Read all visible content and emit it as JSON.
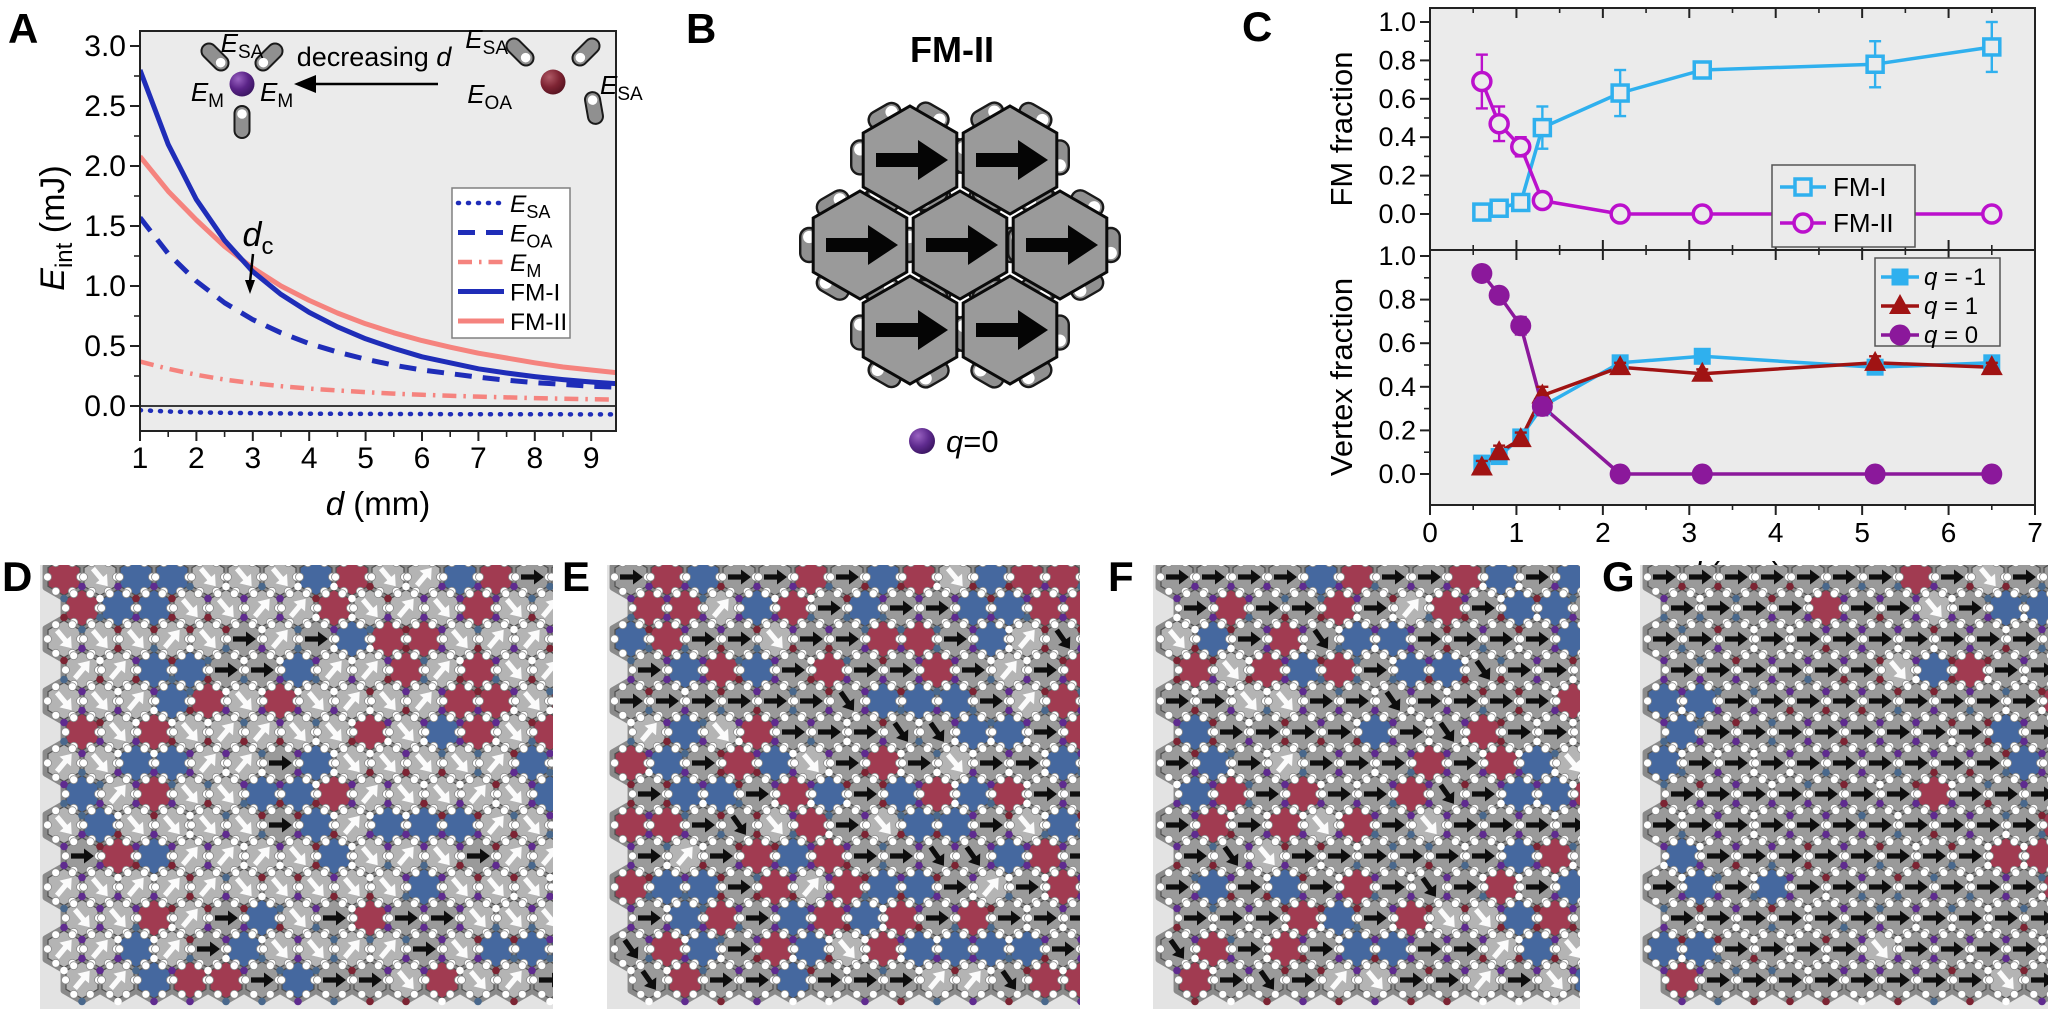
{
  "panels": {
    "a": "A",
    "b": "B",
    "c": "C",
    "d": "D",
    "e": "E",
    "f": "F",
    "g": "G"
  },
  "colors": {
    "blue": "#1f2db8",
    "salmon": "#f5837e",
    "cyan": "#2fb0ee",
    "magenta": "#bb10cc",
    "dark_red": "#a01313",
    "purple": "#8b189b",
    "vertex_purple": "#5f2b8f",
    "sphere_red": "#8e2f3c",
    "hex_red": "#a13b51",
    "hex_blue": "#45689f",
    "hex_gray": "#9a9a9a",
    "hex_light": "#b4b4b4",
    "plot_bg": "#ebebeb",
    "lattice_bg": "#e3e3e3",
    "capsule_gray": "#909090"
  },
  "panel_a": {
    "y_title": {
      "base": "E",
      "sub": "int",
      "rest": " (mJ)",
      "italic": true
    },
    "x_title": {
      "base": "d",
      "rest": " (mm)",
      "italic": true
    },
    "x_ticks": [
      1,
      2,
      3,
      4,
      5,
      6,
      7,
      8,
      9
    ],
    "y_ticks": [
      "0.0",
      "0.5",
      "1.0",
      "1.5",
      "2.0",
      "2.5",
      "3.0"
    ],
    "dc_annotation": {
      "base": "d",
      "sub": "c",
      "italic": true
    },
    "inset": {
      "arrow_label": {
        "pre": "decreasing ",
        "base": "d",
        "italic": true
      },
      "left_labels": [
        {
          "base": "E",
          "sub": "SA",
          "italic": true
        },
        {
          "base": "E",
          "sub": "M",
          "italic": true
        },
        {
          "base": "E",
          "sub": "M",
          "italic": true
        }
      ],
      "right_labels": [
        {
          "base": "E",
          "sub": "SA",
          "italic": true
        },
        {
          "base": "E",
          "sub": "OA",
          "italic": true
        },
        {
          "base": "E",
          "sub": "SA",
          "italic": true
        }
      ]
    },
    "legend": [
      {
        "label": {
          "base": "E",
          "sub": "SA",
          "italic": true
        },
        "style": "dotted",
        "color": "blue"
      },
      {
        "label": {
          "base": "E",
          "sub": "OA",
          "italic": true
        },
        "style": "dashed",
        "color": "blue"
      },
      {
        "label": {
          "base": "E",
          "sub": "M",
          "italic": true
        },
        "style": "dashdot",
        "color": "salmon"
      },
      {
        "label": {
          "base": "FM-I"
        },
        "style": "solid",
        "color": "blue"
      },
      {
        "label": {
          "base": "FM-II"
        },
        "style": "solid",
        "color": "salmon"
      }
    ]
  },
  "panel_b": {
    "title": "FM-II",
    "legend_label": {
      "base": "q",
      "rest": "=0",
      "italic": true
    },
    "hex_count": 7,
    "arrow_direction": "right"
  },
  "panel_c": {
    "top_y_title": "FM fraction",
    "bottom_y_title": "Vertex fraction",
    "x_title": {
      "base": "d",
      "rest": " (mm)",
      "italic": true
    },
    "x_ticks": [
      0,
      1,
      2,
      3,
      4,
      5,
      6,
      7
    ],
    "y_ticks": [
      "0.0",
      "0.2",
      "0.4",
      "0.6",
      "0.8",
      "1.0"
    ],
    "legend_top": [
      {
        "label": {
          "base": "FM-I"
        },
        "marker": "square-open",
        "color": "cyan"
      },
      {
        "label": {
          "base": "FM-II"
        },
        "marker": "circle-open",
        "color": "magenta"
      }
    ],
    "legend_bottom": [
      {
        "label": {
          "base": "q",
          "rest": " = -1",
          "italic": true
        },
        "marker": "square",
        "color": "cyan"
      },
      {
        "label": {
          "base": "q",
          "rest": " = 1",
          "italic": true
        },
        "marker": "triangle",
        "color": "dark_red"
      },
      {
        "label": {
          "base": "q",
          "rest": " = 0",
          "italic": true
        },
        "marker": "circle",
        "color": "purple"
      }
    ]
  },
  "chart_data": [
    {
      "id": "panel-A",
      "type": "line",
      "xlabel": "d (mm)",
      "ylabel": "E_int (mJ)",
      "xlim": [
        1,
        9.44
      ],
      "ylim": [
        -0.21,
        3.12
      ],
      "grid": false,
      "legend_position": "right",
      "x": [
        1,
        1.5,
        2,
        2.5,
        3,
        3.5,
        4,
        4.5,
        5,
        5.5,
        6,
        6.5,
        7,
        7.5,
        8,
        8.5,
        9,
        9.5
      ],
      "series": [
        {
          "name": "E_SA",
          "style": "dotted",
          "color": "blue",
          "values": [
            -0.035,
            -0.046,
            -0.053,
            -0.057,
            -0.06,
            -0.062,
            -0.064,
            -0.065,
            -0.066,
            -0.067,
            -0.067,
            -0.068,
            -0.068,
            -0.069,
            -0.069,
            -0.069,
            -0.07,
            -0.07
          ]
        },
        {
          "name": "E_OA",
          "style": "dashed",
          "color": "blue",
          "values": [
            1.57,
            1.27,
            1.04,
            0.86,
            0.72,
            0.61,
            0.52,
            0.45,
            0.39,
            0.34,
            0.3,
            0.27,
            0.24,
            0.215,
            0.195,
            0.18,
            0.165,
            0.155
          ]
        },
        {
          "name": "E_M",
          "style": "dashdot",
          "color": "salmon",
          "values": [
            0.37,
            0.31,
            0.26,
            0.22,
            0.19,
            0.165,
            0.145,
            0.13,
            0.115,
            0.103,
            0.093,
            0.085,
            0.078,
            0.072,
            0.066,
            0.061,
            0.057,
            0.053
          ]
        },
        {
          "name": "FM-I",
          "style": "solid",
          "color": "blue",
          "values": [
            2.8,
            2.18,
            1.72,
            1.38,
            1.12,
            0.93,
            0.78,
            0.66,
            0.56,
            0.48,
            0.41,
            0.36,
            0.31,
            0.275,
            0.245,
            0.22,
            0.2,
            0.185
          ]
        },
        {
          "name": "FM-II",
          "style": "solid",
          "color": "salmon",
          "values": [
            2.08,
            1.79,
            1.55,
            1.33,
            1.15,
            1.0,
            0.88,
            0.775,
            0.685,
            0.61,
            0.545,
            0.49,
            0.44,
            0.4,
            0.36,
            0.325,
            0.3,
            0.275
          ]
        }
      ],
      "annotations": [
        {
          "text": "d_c",
          "at_x": 2.95,
          "at_y": 1.55,
          "arrow_to_y": 1.17
        }
      ]
    },
    {
      "id": "panel-C-top",
      "type": "scatter",
      "ylabel": "FM fraction",
      "xlim": [
        0,
        7
      ],
      "ylim": [
        -0.18,
        1.07
      ],
      "grid": false,
      "x": [
        0.6,
        0.8,
        1.05,
        1.3,
        2.2,
        3.15,
        5.15,
        6.5
      ],
      "series": [
        {
          "name": "FM-I",
          "marker": "square-open",
          "color": "cyan",
          "values": [
            0.01,
            0.03,
            0.06,
            0.45,
            0.63,
            0.75,
            0.78,
            0.87
          ],
          "errors": [
            0,
            0,
            0,
            0.11,
            0.12,
            0.02,
            0.12,
            0.13
          ]
        },
        {
          "name": "FM-II",
          "marker": "circle-open",
          "color": "magenta",
          "values": [
            0.69,
            0.47,
            0.35,
            0.07,
            0.0,
            0.0,
            0.0,
            0.0
          ],
          "errors": [
            0.14,
            0.09,
            0.05,
            0.02,
            0,
            0,
            0,
            0
          ]
        }
      ]
    },
    {
      "id": "panel-C-bottom",
      "type": "scatter",
      "ylabel": "Vertex fraction",
      "xlabel": "d (mm)",
      "xlim": [
        0,
        7
      ],
      "ylim": [
        -0.13,
        1.03
      ],
      "grid": false,
      "x": [
        0.6,
        0.8,
        1.05,
        1.3,
        2.2,
        3.15,
        5.15,
        6.5
      ],
      "series": [
        {
          "name": "q = -1",
          "marker": "square",
          "color": "cyan",
          "values": [
            0.05,
            0.08,
            0.17,
            0.31,
            0.51,
            0.54,
            0.49,
            0.51
          ],
          "errors": [
            0.03,
            0.03,
            0.03,
            0.04,
            0.02,
            0.02,
            0.03,
            0.02
          ]
        },
        {
          "name": "q = 1",
          "marker": "triangle",
          "color": "dark_red",
          "values": [
            0.03,
            0.1,
            0.16,
            0.36,
            0.49,
            0.46,
            0.51,
            0.49
          ],
          "errors": [
            0.03,
            0.03,
            0.03,
            0.04,
            0.02,
            0.02,
            0.03,
            0.02
          ]
        },
        {
          "name": "q = 0",
          "marker": "circle",
          "color": "purple",
          "values": [
            0.92,
            0.82,
            0.68,
            0.31,
            0.0,
            0.0,
            0.0,
            0.0
          ],
          "errors": [
            0.02,
            0.03,
            0.04,
            0.04,
            0,
            0,
            0,
            0
          ]
        }
      ]
    }
  ],
  "lattices": [
    {
      "panel": "D",
      "fractions": {
        "red": 0.18,
        "blue": 0.19,
        "black": 0.12,
        "white": 0.51
      },
      "seed": 7,
      "edge_bias": false
    },
    {
      "panel": "E",
      "fractions": {
        "red": 0.23,
        "blue": 0.23,
        "black": 0.42,
        "white": 0.12
      },
      "seed": 13,
      "edge_bias": false
    },
    {
      "panel": "F",
      "fractions": {
        "red": 0.19,
        "blue": 0.16,
        "black": 0.52,
        "white": 0.13
      },
      "seed": 21,
      "edge_bias": false
    },
    {
      "panel": "G",
      "fractions": {
        "red": 0.03,
        "blue": 0.06,
        "black": 0.88,
        "white": 0.03
      },
      "seed": 5,
      "edge_bias": true
    }
  ]
}
